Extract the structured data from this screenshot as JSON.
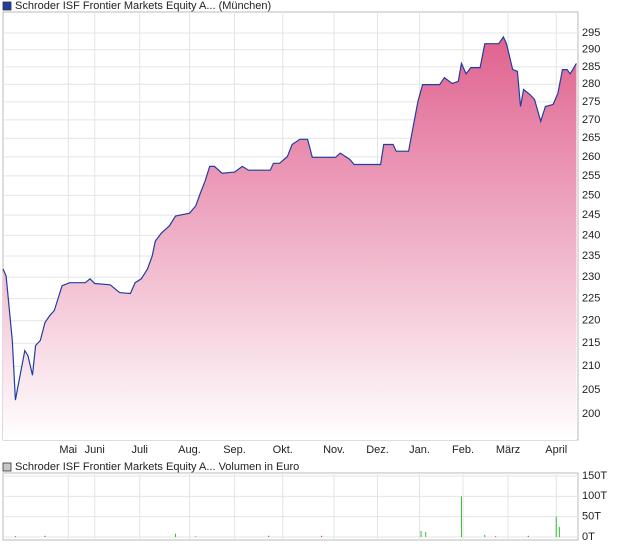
{
  "chart_data": [
    {
      "type": "area",
      "log": true,
      "grid": true,
      "series": [
        {
          "name": "Schroder ISF Frontier Markets Equity A... (München)",
          "color": "#1f3f9f",
          "fill": "#e0628f",
          "values": [
            231.9,
            230.3,
            215.6,
            202.9,
            208.1,
            213.4,
            212.3,
            208.1,
            214.5,
            215.6,
            219.6,
            221.1,
            222.3,
            228.0,
            228.7,
            228.7,
            229.6,
            228.5,
            228.2,
            226.4,
            226.2,
            228.7,
            229.6,
            231.9,
            235.0,
            238.6,
            240.6,
            242.3,
            244.8,
            245.5,
            247.3,
            250.6,
            253.6,
            257.5,
            257.5,
            255.7,
            256.0,
            257.5,
            256.5,
            256.5,
            258.3,
            258.3,
            260.1,
            263.3,
            264.7,
            264.7,
            259.9,
            259.9,
            261.0,
            259.4,
            258.0,
            258.0,
            263.3,
            263.3,
            261.5,
            261.5,
            266.0,
            275.1,
            279.9,
            279.9,
            281.9,
            280.2,
            280.8,
            286.0,
            283.0,
            284.8,
            284.8,
            291.8,
            291.8,
            293.8,
            291.8,
            284.2,
            283.7,
            273.7,
            278.5,
            277.1,
            275.7,
            269.6,
            273.7,
            274.3,
            277.3,
            284.2,
            284.2,
            283.0,
            286.0
          ]
        }
      ],
      "x": [
        0,
        2,
        6,
        8,
        11,
        14,
        16,
        19,
        21,
        24,
        27,
        30,
        33,
        38,
        43,
        53,
        56,
        59,
        69,
        75,
        82,
        85,
        89,
        93,
        96,
        98,
        102,
        107,
        111,
        120,
        124,
        127,
        130,
        133,
        136,
        141,
        149,
        154,
        158,
        172,
        174,
        178,
        183,
        186,
        191,
        196,
        199,
        214,
        217,
        223,
        226,
        243,
        245,
        251,
        253,
        261,
        263,
        267,
        270,
        281,
        284,
        289,
        293,
        295,
        298,
        301,
        307,
        310,
        319,
        322,
        324,
        328,
        331,
        333,
        335,
        339,
        342,
        346,
        349,
        354,
        357,
        360,
        363,
        365,
        369
      ],
      "xlim": [
        0,
        370
      ],
      "xticks": [
        {
          "value": 42,
          "label": "Mai"
        },
        {
          "value": 59,
          "label": "Juni"
        },
        {
          "value": 88,
          "label": "Juli"
        },
        {
          "value": 120,
          "label": "Aug."
        },
        {
          "value": 149,
          "label": "Sep."
        },
        {
          "value": 180,
          "label": "Okt."
        },
        {
          "value": 213,
          "label": "Nov."
        },
        {
          "value": 241,
          "label": "Dez."
        },
        {
          "value": 268,
          "label": "Jan."
        },
        {
          "value": 296,
          "label": "Feb."
        },
        {
          "value": 325,
          "label": "März"
        },
        {
          "value": 356,
          "label": "April"
        }
      ],
      "ylim": [
        194.8,
        301.4
      ],
      "yticks": [
        200,
        205,
        210,
        215,
        220,
        225,
        230,
        235,
        240,
        245,
        250,
        255,
        260,
        265,
        270,
        275,
        280,
        285,
        290,
        295
      ]
    },
    {
      "type": "bar",
      "grid": true,
      "series": [
        {
          "name": "Schroder ISF Frontier Markets Equity A... Volumen in Euro",
          "color": "#c8c8c8",
          "values": [
            2000,
            3000,
            8000,
            2000,
            3000,
            3000,
            15000,
            12000,
            100000,
            5000,
            2000,
            3000,
            50000,
            25000
          ],
          "colors": [
            "#e03030",
            "#e03030",
            "#30c030",
            "#30c030",
            "#e03030",
            "#e03030",
            "#30c030",
            "#30c030",
            "#30c030",
            "#30c030",
            "#e03030",
            "#e03030",
            "#30c030",
            "#30c030"
          ]
        }
      ],
      "x": [
        8,
        27,
        111,
        124,
        171,
        205,
        269,
        272,
        295,
        310,
        317,
        338,
        356,
        358
      ],
      "xlim": [
        0,
        370
      ],
      "ylim": [
        -7400,
        157400
      ],
      "yticks": [
        {
          "value": 0,
          "label": "0T"
        },
        {
          "value": 50000,
          "label": "50T"
        },
        {
          "value": 100000,
          "label": "100T"
        },
        {
          "value": 150000,
          "label": "150T"
        }
      ]
    }
  ]
}
